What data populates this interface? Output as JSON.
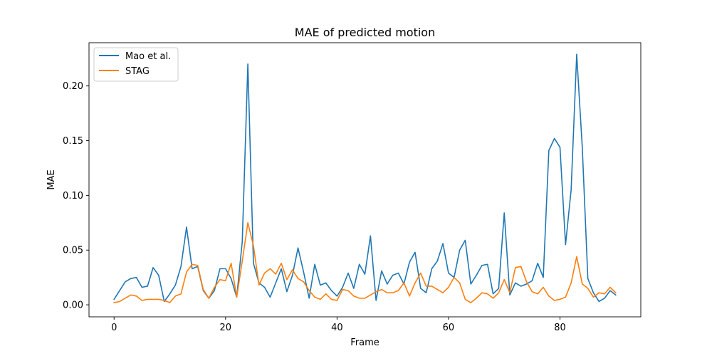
{
  "chart_data": {
    "type": "line",
    "title": "MAE of predicted motion",
    "xlabel": "Frame",
    "ylabel": "MAE",
    "xlim": [
      -4.5,
      94.5
    ],
    "ylim": [
      -0.011,
      0.2395
    ],
    "xticks": [
      0,
      20,
      40,
      60,
      80
    ],
    "xtick_labels": [
      "0",
      "20",
      "40",
      "60",
      "80"
    ],
    "yticks": [
      0.0,
      0.05,
      0.1,
      0.15,
      0.2
    ],
    "ytick_labels": [
      "0.00",
      "0.05",
      "0.10",
      "0.15",
      "0.20"
    ],
    "grid": false,
    "legend_position": "upper-left",
    "x": [
      0,
      1,
      2,
      3,
      4,
      5,
      6,
      7,
      8,
      9,
      10,
      11,
      12,
      13,
      14,
      15,
      16,
      17,
      18,
      19,
      20,
      21,
      22,
      23,
      24,
      25,
      26,
      27,
      28,
      29,
      30,
      31,
      32,
      33,
      34,
      35,
      36,
      37,
      38,
      39,
      40,
      41,
      42,
      43,
      44,
      45,
      46,
      47,
      48,
      49,
      50,
      51,
      52,
      53,
      54,
      55,
      56,
      57,
      58,
      59,
      60,
      61,
      62,
      63,
      64,
      65,
      66,
      67,
      68,
      69,
      70,
      71,
      72,
      73,
      74,
      75,
      76,
      77,
      78,
      79,
      80,
      81,
      82,
      83,
      84,
      85,
      86,
      87,
      88,
      89,
      90
    ],
    "series": [
      {
        "name": "Mao et al.",
        "color": "#1f77b4",
        "values": [
          0.005,
          0.013,
          0.021,
          0.024,
          0.025,
          0.016,
          0.017,
          0.034,
          0.027,
          0.003,
          0.01,
          0.018,
          0.035,
          0.071,
          0.033,
          0.035,
          0.013,
          0.006,
          0.013,
          0.033,
          0.033,
          0.024,
          0.007,
          0.058,
          0.22,
          0.038,
          0.02,
          0.016,
          0.007,
          0.02,
          0.033,
          0.012,
          0.027,
          0.052,
          0.03,
          0.006,
          0.037,
          0.018,
          0.02,
          0.013,
          0.008,
          0.016,
          0.029,
          0.015,
          0.037,
          0.028,
          0.063,
          0.004,
          0.031,
          0.019,
          0.027,
          0.029,
          0.019,
          0.039,
          0.048,
          0.015,
          0.011,
          0.033,
          0.04,
          0.056,
          0.029,
          0.025,
          0.05,
          0.059,
          0.019,
          0.027,
          0.036,
          0.037,
          0.01,
          0.015,
          0.084,
          0.009,
          0.02,
          0.017,
          0.019,
          0.022,
          0.038,
          0.025,
          0.141,
          0.152,
          0.144,
          0.055,
          0.105,
          0.229,
          0.144,
          0.024,
          0.011,
          0.003,
          0.006,
          0.013,
          0.009
        ]
      },
      {
        "name": "STAG",
        "color": "#ff7f0e",
        "values": [
          0.002,
          0.003,
          0.006,
          0.009,
          0.008,
          0.004,
          0.005,
          0.005,
          0.005,
          0.004,
          0.002,
          0.008,
          0.01,
          0.03,
          0.037,
          0.036,
          0.014,
          0.006,
          0.016,
          0.023,
          0.022,
          0.038,
          0.007,
          0.04,
          0.075,
          0.054,
          0.018,
          0.029,
          0.033,
          0.028,
          0.038,
          0.023,
          0.032,
          0.024,
          0.021,
          0.013,
          0.007,
          0.005,
          0.01,
          0.005,
          0.004,
          0.014,
          0.013,
          0.008,
          0.006,
          0.006,
          0.009,
          0.012,
          0.014,
          0.011,
          0.011,
          0.013,
          0.02,
          0.008,
          0.02,
          0.029,
          0.017,
          0.017,
          0.014,
          0.011,
          0.016,
          0.025,
          0.02,
          0.005,
          0.002,
          0.006,
          0.011,
          0.01,
          0.006,
          0.011,
          0.023,
          0.011,
          0.034,
          0.035,
          0.021,
          0.012,
          0.01,
          0.016,
          0.008,
          0.004,
          0.005,
          0.007,
          0.02,
          0.044,
          0.019,
          0.015,
          0.007,
          0.011,
          0.01,
          0.016,
          0.011
        ]
      }
    ]
  }
}
